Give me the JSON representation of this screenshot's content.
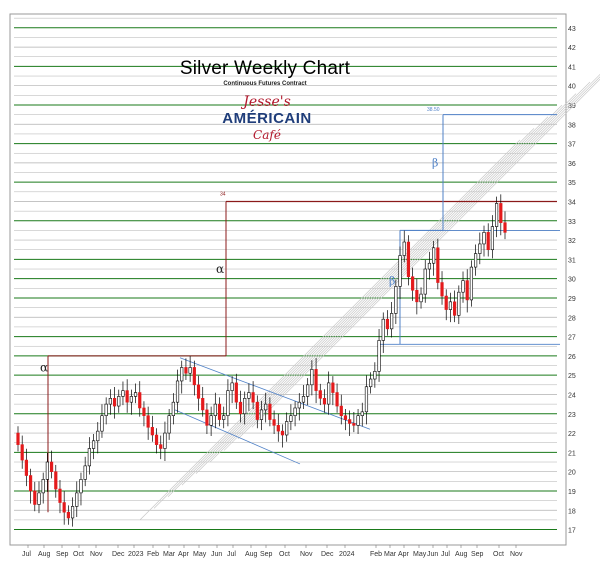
{
  "chart_data": {
    "type": "candlestick",
    "title": "Silver Weekly Chart",
    "subtitle": "Continuous Futures Contract",
    "ylim": [
      16.2,
      43.3
    ],
    "yticks": [
      17,
      18,
      19,
      20,
      21,
      22,
      23,
      24,
      25,
      26,
      27,
      28,
      29,
      30,
      31,
      32,
      33,
      34,
      35,
      36,
      37,
      38,
      39,
      40,
      41,
      42,
      43
    ],
    "xticks": [
      "Jul",
      "Aug",
      "Sep",
      "Oct",
      "Nov",
      "Dec",
      "2023",
      "Feb",
      "Mar",
      "Apr",
      "May",
      "Jun",
      "Jul",
      "Aug",
      "Sep",
      "Oct",
      "Nov",
      "Dec",
      "2024",
      "Feb",
      "Mar",
      "Apr",
      "May",
      "Jun",
      "Jul",
      "Aug",
      "Sep",
      "Oct",
      "Nov"
    ],
    "annotations": {
      "alpha_label": "α",
      "beta_label": "β",
      "alpha_target": "34",
      "beta_target": "38.50"
    },
    "closes": [
      21.4,
      20.6,
      19.8,
      19.0,
      18.3,
      18.9,
      19.6,
      20.5,
      20.0,
      19.1,
      18.4,
      17.9,
      17.6,
      18.2,
      18.9,
      19.6,
      20.3,
      21.2,
      21.6,
      22.1,
      22.9,
      23.5,
      23.8,
      23.4,
      23.9,
      24.2,
      23.6,
      23.9,
      24.1,
      23.3,
      22.9,
      22.3,
      21.9,
      21.4,
      21.2,
      22.0,
      22.9,
      23.6,
      24.7,
      25.4,
      25.1,
      25.4,
      24.5,
      23.8,
      23.2,
      22.4,
      22.9,
      23.5,
      22.7,
      22.9,
      24.2,
      24.6,
      23.6,
      23.0,
      23.8,
      24.1,
      23.6,
      22.7,
      23.2,
      23.5,
      22.7,
      22.4,
      22.1,
      21.9,
      22.6,
      22.9,
      23.3,
      23.6,
      23.9,
      24.5,
      25.3,
      24.2,
      23.8,
      23.5,
      24.6,
      24.1,
      23.4,
      22.9,
      22.7,
      22.5,
      22.4,
      22.9,
      23.1,
      24.4,
      24.8,
      25.2,
      26.8,
      27.9,
      27.4,
      28.2,
      29.6,
      31.2,
      31.9,
      30.1,
      29.4,
      28.8,
      29.2,
      30.5,
      30.8,
      31.6,
      29.8,
      29.1,
      28.4,
      28.8,
      28.1,
      29.3,
      29.9,
      28.9,
      30.6,
      31.3,
      31.8,
      32.4,
      31.5,
      32.7,
      33.9,
      32.9,
      32.4
    ],
    "horizontal_levels": [
      17,
      18,
      19,
      20,
      21,
      22,
      23,
      24,
      25,
      26,
      27,
      28,
      29,
      30,
      31,
      32,
      33,
      34,
      35,
      36,
      37,
      38,
      39,
      40,
      41,
      42,
      43
    ]
  },
  "logo": {
    "line1": "Jesse's",
    "line2": "AMÉRICAIN",
    "line3": "Café"
  },
  "colors": {
    "up": "#ffffff",
    "down": "#e41a1c",
    "wick": "#000000",
    "level_green": "#1a7a1a",
    "level_gray": "#b0b0b0",
    "measured_move": "#8b1a1a",
    "beta_line": "#4f81c7",
    "channel": "#c8c8c8"
  }
}
